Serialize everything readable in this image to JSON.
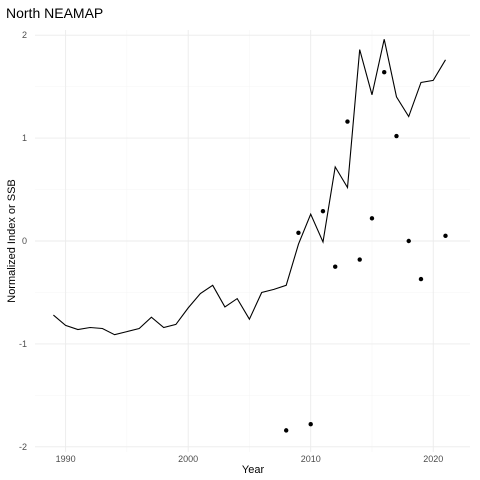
{
  "chart_data": {
    "type": "line",
    "title": "North NEAMAP",
    "xlabel": "Year",
    "ylabel": "Normalized Index or SSB",
    "xlim": [
      1987.5,
      2023.0
    ],
    "ylim": [
      -2.05,
      2.05
    ],
    "xticks": [
      1990,
      2000,
      2010,
      2020
    ],
    "xtick_labels": [
      "1990",
      "2000",
      "2010",
      "2020"
    ],
    "yticks": [
      -2,
      -1,
      0,
      1,
      2
    ],
    "ytick_labels": [
      "-2",
      "-1",
      "0",
      "1",
      "2"
    ],
    "grid": true,
    "series": [
      {
        "kind": "line",
        "x": [
          1989,
          1990,
          1991,
          1992,
          1993,
          1994,
          1995,
          1996,
          1997,
          1998,
          1999,
          2000,
          2001,
          2002,
          2003,
          2004,
          2005,
          2006,
          2007,
          2008,
          2009,
          2010,
          2011,
          2012,
          2013,
          2014,
          2015,
          2016,
          2017,
          2018,
          2019,
          2020,
          2021
        ],
        "y": [
          -0.72,
          -0.82,
          -0.86,
          -0.84,
          -0.85,
          -0.91,
          -0.88,
          -0.85,
          -0.74,
          -0.84,
          -0.81,
          -0.65,
          -0.51,
          -0.43,
          -0.64,
          -0.56,
          -0.76,
          -0.5,
          -0.47,
          -0.43,
          -0.03,
          0.26,
          -0.01,
          0.72,
          0.52,
          1.86,
          1.42,
          1.96,
          1.4,
          1.21,
          1.54,
          1.56,
          1.76
        ]
      },
      {
        "kind": "scatter",
        "x": [
          2008,
          2009,
          2010,
          2011,
          2012,
          2013,
          2014,
          2015,
          2016,
          2017,
          2018,
          2019,
          2021
        ],
        "y": [
          -1.84,
          0.08,
          -1.78,
          0.29,
          -0.25,
          1.16,
          -0.18,
          0.22,
          1.64,
          1.02,
          0.0,
          -0.37,
          0.05
        ]
      }
    ]
  }
}
